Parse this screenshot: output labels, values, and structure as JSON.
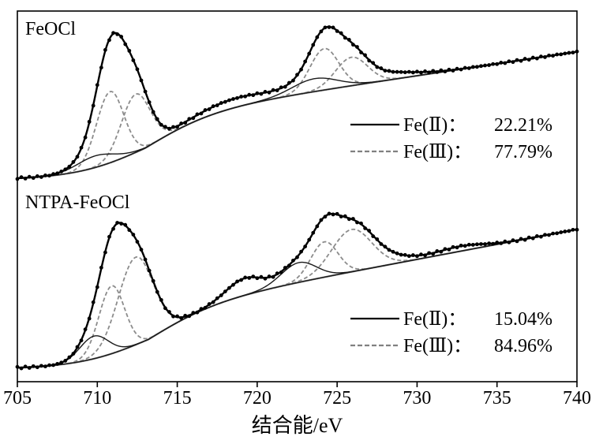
{
  "chart_data": {
    "type": "line",
    "xlabel": "结合能/eV",
    "ylabel": "",
    "xlim": [
      705,
      740
    ],
    "x_ticks": [
      "705",
      "710",
      "715",
      "720",
      "725",
      "730",
      "735",
      "740"
    ],
    "grid": false,
    "panels": [
      {
        "title": "FeOCl",
        "legend_position": "center-right",
        "legend": [
          {
            "name": "Fe(Ⅱ)",
            "value": "22.21%",
            "style": "solid",
            "color": "#000000"
          },
          {
            "name": "Fe(Ⅲ)",
            "value": "77.79%",
            "style": "dashed",
            "color": "#808080"
          }
        ],
        "background": {
          "start": 0.0,
          "mid": 0.49,
          "end": 0.99,
          "step_center": 713.0,
          "step_width": 2.2,
          "slope": 0.013
        },
        "fe2_peaks": [
          {
            "center": 709.9,
            "height": 0.09,
            "width": 1.2
          },
          {
            "center": 723.6,
            "height": 0.1,
            "width": 1.4
          }
        ],
        "fe3_peaks": [
          {
            "center": 710.8,
            "height": 0.55,
            "width": 0.85
          },
          {
            "center": 712.4,
            "height": 0.45,
            "width": 0.9
          },
          {
            "center": 724.2,
            "height": 0.32,
            "width": 0.9
          },
          {
            "center": 725.9,
            "height": 0.22,
            "width": 1.0
          }
        ],
        "extra_peaks": [
          {
            "center": 711.0,
            "height": 0.26,
            "width": 1.1
          },
          {
            "center": 718.7,
            "height": 0.07,
            "width": 2.4
          },
          {
            "center": 727.8,
            "height": 0.055,
            "width": 1.9
          }
        ]
      },
      {
        "title": "NTPA-FeOCl",
        "legend_position": "bottom-right",
        "legend": [
          {
            "name": "Fe(Ⅱ)",
            "value": "15.04%",
            "style": "solid",
            "color": "#000000"
          },
          {
            "name": "Fe(Ⅲ)",
            "value": "84.96%",
            "style": "dashed",
            "color": "#808080"
          }
        ],
        "background": {
          "start": 0.0,
          "mid": 0.42,
          "end": 0.99,
          "step_center": 713.2,
          "step_width": 2.2,
          "slope": 0.016
        },
        "fe2_peaks": [
          {
            "center": 709.8,
            "height": 0.16,
            "width": 0.9
          },
          {
            "center": 722.6,
            "height": 0.14,
            "width": 1.1
          }
        ],
        "fe3_peaks": [
          {
            "center": 710.9,
            "height": 0.48,
            "width": 0.8
          },
          {
            "center": 712.4,
            "height": 0.62,
            "width": 1.1
          },
          {
            "center": 724.2,
            "height": 0.25,
            "width": 0.85
          },
          {
            "center": 725.9,
            "height": 0.3,
            "width": 1.25
          }
        ],
        "extra_peaks": [
          {
            "center": 711.3,
            "height": 0.07,
            "width": 1.2
          },
          {
            "center": 719.2,
            "height": 0.12,
            "width": 1.15
          },
          {
            "center": 727.5,
            "height": 0.06,
            "width": 1.7
          },
          {
            "center": 732.7,
            "height": 0.035,
            "width": 1.4
          }
        ]
      }
    ]
  }
}
